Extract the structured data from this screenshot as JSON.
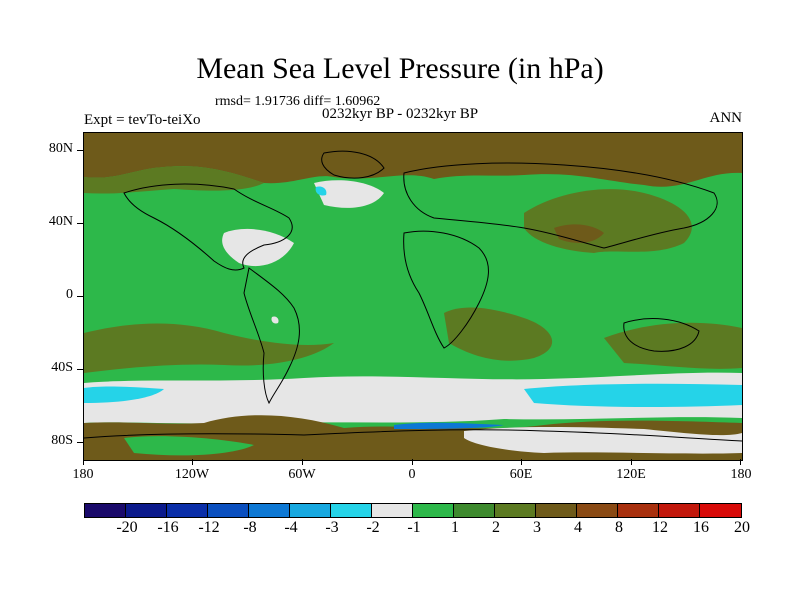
{
  "title": "Mean Sea Level Pressure (in hPa)",
  "subtitle_stats": "rmsd= 1.91736 diff= 1.60962",
  "subtitle_period": "0232kyr BP - 0232kyr BP",
  "experiment_label": "Expt = tevTo-teiXo",
  "season_label": "ANN",
  "y_ticks": [
    "80N",
    "40N",
    "0",
    "40S",
    "80S"
  ],
  "x_ticks": [
    "180",
    "120W",
    "60W",
    "0",
    "60E",
    "120E",
    "180"
  ],
  "colorbar": {
    "colors": [
      "#1a0a6b",
      "#0b1a8c",
      "#0a2ea8",
      "#0a4fbf",
      "#0d78d4",
      "#17a8e0",
      "#25d3e8",
      "#e6e6e6",
      "#2db84a",
      "#3e8a2e",
      "#5c7a22",
      "#6e5a1a",
      "#8a4a14",
      "#a8300e",
      "#c2180c",
      "#d80a08"
    ],
    "labels": [
      "-20",
      "-16",
      "-12",
      "-8",
      "-4",
      "-3",
      "-2",
      "-1",
      "1",
      "2",
      "3",
      "4",
      "8",
      "12",
      "16",
      "20"
    ]
  }
}
